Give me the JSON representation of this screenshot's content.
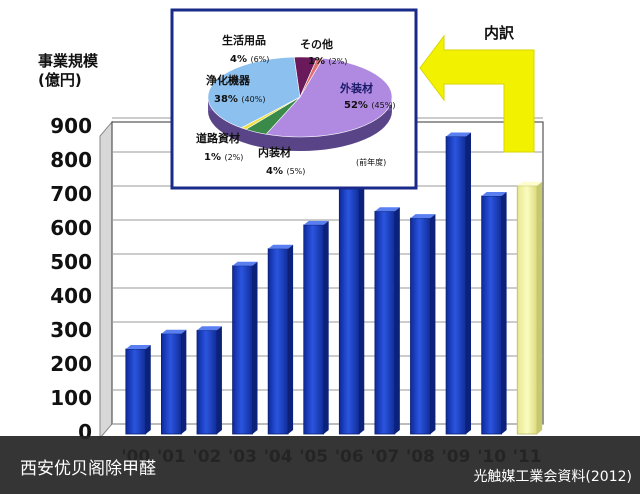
{
  "chart_data": {
    "type": "bar",
    "title": "",
    "ylabel": "事業規模\n(億円)",
    "ylim": [
      0,
      900
    ],
    "yticks": [
      0,
      100,
      200,
      300,
      400,
      500,
      600,
      700,
      800,
      900
    ],
    "categories": [
      "'00",
      "'01",
      "'02",
      "'03",
      "'04",
      "'05",
      "'06",
      "'07",
      "'08",
      "'09",
      "'10",
      "'11"
    ],
    "values": [
      250,
      295,
      305,
      495,
      545,
      615,
      790,
      655,
      635,
      875,
      700,
      730
    ],
    "highlight_category": "'11",
    "colors": {
      "bar": "#1b3fbf",
      "highlight": "#f4f4a0",
      "arrow": "#f2f200"
    },
    "grid": true
  },
  "inset": {
    "type": "pie",
    "label": "内訳",
    "note": "(前年度)",
    "slices": [
      {
        "name": "外装材",
        "pct": "52%",
        "prev": "(45%)",
        "value": 52,
        "color": "#b08ae0"
      },
      {
        "name": "内装材",
        "pct": "4%",
        "prev": "(5%)",
        "value": 4,
        "color": "#3a8a4a"
      },
      {
        "name": "道路資材",
        "pct": "1%",
        "prev": "(2%)",
        "value": 1,
        "color": "#f0e040"
      },
      {
        "name": "浄化機器",
        "pct": "38%",
        "prev": "(40%)",
        "value": 38,
        "color": "#8cc0ee"
      },
      {
        "name": "生活用品",
        "pct": "4%",
        "prev": "(6%)",
        "value": 4,
        "color": "#6a1a5a"
      },
      {
        "name": "その他",
        "pct": "1%",
        "prev": "(2%)",
        "value": 1,
        "color": "#e07070"
      }
    ]
  },
  "caption": {
    "left": "西安优贝阁除甲醛",
    "right": "光触媒工業会資料(2012)"
  }
}
